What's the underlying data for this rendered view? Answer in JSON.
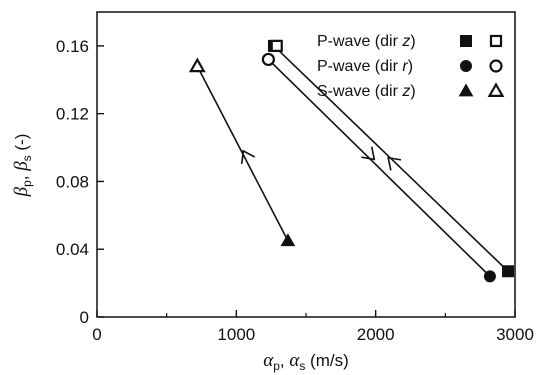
{
  "chart_data": {
    "type": "line",
    "xlim": [
      0,
      3000
    ],
    "ylim": [
      0,
      0.18
    ],
    "x_ticks": [
      0,
      1000,
      2000,
      3000
    ],
    "x_tick_labels": [
      "0",
      "1000",
      "2000",
      "3000"
    ],
    "y_ticks": [
      0,
      0.04,
      0.08,
      0.12,
      0.16
    ],
    "y_tick_labels": [
      "0",
      "0.04",
      "0.08",
      "0.12",
      "0.16"
    ],
    "xlabel": {
      "sym1": "α",
      "sub1": "p",
      "sep": ", ",
      "sym2": "α",
      "sub2": "s",
      "unit": " (m/s)"
    },
    "ylabel": {
      "sym1": "β",
      "sub1": "p",
      "sep": ", ",
      "sym2": "β",
      "sub2": "s",
      "unit": " (-)"
    },
    "series": [
      {
        "legend_prefix": "P-wave (dir ",
        "legend_dir": "z",
        "legend_suffix": ")",
        "marker": "square",
        "points": [
          {
            "x": 1270,
            "y": 0.16,
            "filled": true
          },
          {
            "x": 1290,
            "y": 0.16,
            "filled": false
          },
          {
            "x": 2950,
            "y": 0.027,
            "filled": true
          }
        ],
        "arrow": {
          "x": 2090,
          "y": 0.094,
          "direction": "toward-low-x"
        }
      },
      {
        "legend_prefix": "P-wave (dir ",
        "legend_dir": "r",
        "legend_suffix": ")",
        "marker": "circle",
        "points": [
          {
            "x": 1230,
            "y": 0.152,
            "filled": false
          },
          {
            "x": 2820,
            "y": 0.024,
            "filled": true
          }
        ],
        "arrow": {
          "x": 1990,
          "y": 0.093,
          "direction": "toward-high-x"
        }
      },
      {
        "legend_prefix": "S-wave (dir ",
        "legend_dir": "z",
        "legend_suffix": ")",
        "marker": "triangle",
        "points": [
          {
            "x": 720,
            "y": 0.148,
            "filled": false
          },
          {
            "x": 1370,
            "y": 0.045,
            "filled": true
          }
        ],
        "arrow": {
          "x": 1050,
          "y": 0.098,
          "direction": "toward-low-x"
        }
      }
    ],
    "legend_position": "top-right",
    "grid": false
  }
}
